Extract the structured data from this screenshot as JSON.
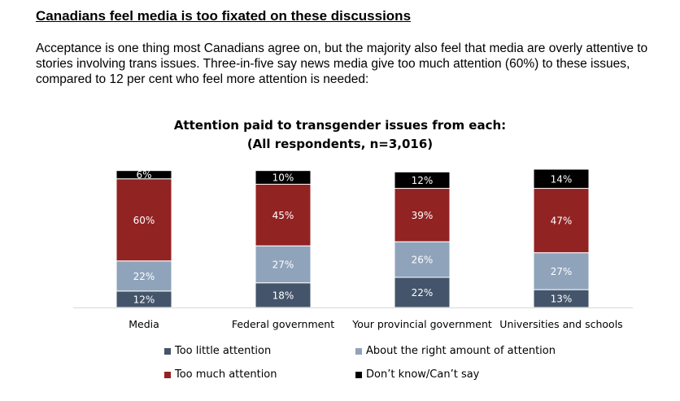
{
  "heading": "Canadians feel media is too fixated on these discussions",
  "intro": "Acceptance is one thing most Canadians agree on, but the majority also feel that media are overly attentive to stories involving trans issues. Three-in-five say news media give too much attention (60%) to these issues, compared to 12 per cent who feel more attention is needed:",
  "chart_data": {
    "type": "bar",
    "stacked": true,
    "title": "Attention paid to transgender issues from each:",
    "subtitle": "(All respondents, n=3,016)",
    "categories": [
      "Media",
      "Federal government",
      "Your provincial government",
      "Universities and schools"
    ],
    "series": [
      {
        "name": "Too little attention",
        "color": "#44546a",
        "values": [
          12,
          18,
          22,
          13
        ]
      },
      {
        "name": "About the right amount of attention",
        "color": "#8fa3bb",
        "values": [
          22,
          27,
          26,
          27
        ]
      },
      {
        "name": "Too much attention",
        "color": "#922323",
        "values": [
          60,
          45,
          39,
          47
        ]
      },
      {
        "name": "Don’t know/Can’t say",
        "color": "#000000",
        "values": [
          6,
          10,
          12,
          14
        ]
      }
    ],
    "value_suffix": "%",
    "ylim": [
      0,
      100
    ],
    "grid": false,
    "legend_position": "bottom"
  }
}
